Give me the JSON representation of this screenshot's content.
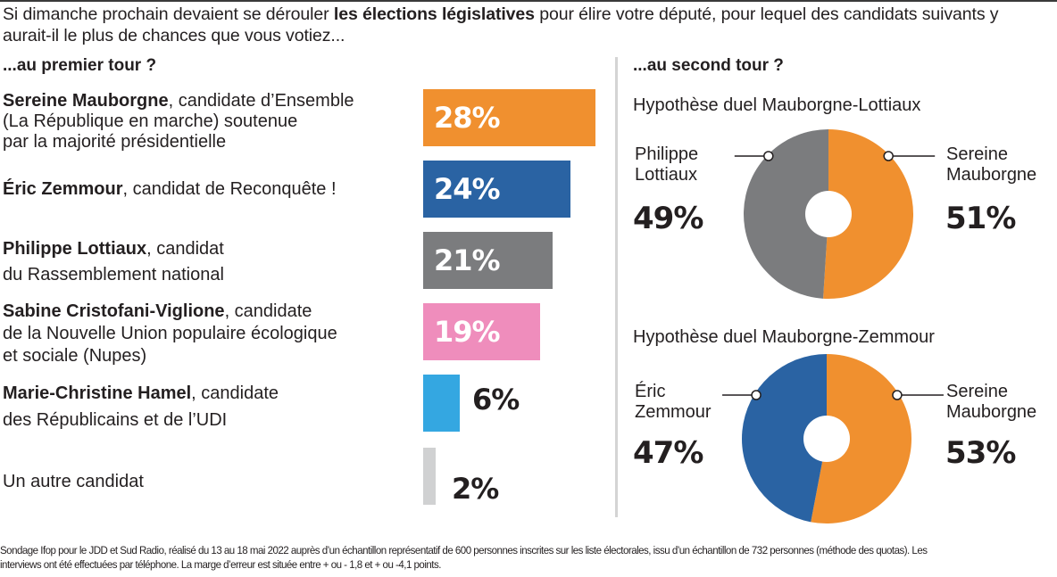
{
  "title": {
    "part1": "Si dimanche prochain devaient se dérouler ",
    "bold": "les élections législatives",
    "part2": " pour élire votre député, pour lequel des candidats suivants y aurait-il le plus de chances que vous votiez..."
  },
  "first_round_heading": "...au premier tour ?",
  "second_round_heading": "...au second tour ?",
  "colors": {
    "orange": "#f0902f",
    "blue": "#2a63a3",
    "gray": "#7b7c7e",
    "pink": "#ef8dbc",
    "lightblue": "#34a7e1",
    "lightgray": "#d0d1d2"
  },
  "chart_data": [
    {
      "type": "bar",
      "title": "...au premier tour ?",
      "orientation": "horizontal",
      "categories": [
        "Sereine Mauborgne",
        "Éric Zemmour",
        "Philippe Lottiaux",
        "Sabine Cristofani-Viglione",
        "Marie-Christine Hamel",
        "Un autre candidat"
      ],
      "values": [
        28,
        24,
        21,
        19,
        6,
        2
      ],
      "unit": "%",
      "xlim": [
        0,
        28
      ],
      "bars": [
        {
          "name": "Sereine Mauborgne",
          "desc": ", candidate d’Ensemble (La République en marche) soutenue par la majorité présidentielle",
          "desc_lines": [
            ", candidate d’Ensemble",
            "(La République en marche) soutenue",
            "par la majorité présidentielle"
          ],
          "value": 28,
          "label": "28%",
          "color": "#f0902f",
          "label_inside": true
        },
        {
          "name": "Éric Zemmour",
          "desc_lines": [
            ", candidat de Reconquête !"
          ],
          "value": 24,
          "label": "24%",
          "color": "#2a63a3",
          "label_inside": true
        },
        {
          "name": "Philippe Lottiaux",
          "desc_lines": [
            ", candidat",
            "du Rassemblement national"
          ],
          "value": 21,
          "label": "21%",
          "color": "#7b7c7e",
          "label_inside": true
        },
        {
          "name": "Sabine Cristofani-Viglione",
          "desc_lines": [
            ", candidate",
            "de la Nouvelle Union populaire écologique",
            "et sociale (Nupes)"
          ],
          "value": 19,
          "label": "19%",
          "color": "#ef8dbc",
          "label_inside": true
        },
        {
          "name": "Marie-Christine Hamel",
          "desc_lines": [
            ", candidate",
            "des Républicains et de l’UDI"
          ],
          "value": 6,
          "label": "6%",
          "color": "#34a7e1",
          "label_inside": false
        },
        {
          "name": "",
          "desc_lines": [
            "Un autre candidat"
          ],
          "value": 2,
          "label": "2%",
          "color": "#d0d1d2",
          "label_inside": false
        }
      ]
    },
    {
      "type": "pie",
      "title": "Hypothèse duel Mauborgne-Lottiaux",
      "slices": [
        {
          "name": "Sereine Mauborgne",
          "name_lines": [
            "Sereine",
            "Mauborgne"
          ],
          "value": 51,
          "label": "51%",
          "color": "#f0902f"
        },
        {
          "name": "Philippe Lottiaux",
          "name_lines": [
            "Philippe",
            "Lottiaux"
          ],
          "value": 49,
          "label": "49%",
          "color": "#7b7c7e"
        }
      ]
    },
    {
      "type": "pie",
      "title": "Hypothèse duel Mauborgne-Zemmour",
      "slices": [
        {
          "name": "Sereine Mauborgne",
          "name_lines": [
            "Sereine",
            "Mauborgne"
          ],
          "value": 53,
          "label": "53%",
          "color": "#f0902f"
        },
        {
          "name": "Éric Zemmour",
          "name_lines": [
            "Éric",
            "Zemmour"
          ],
          "value": 47,
          "label": "47%",
          "color": "#2a63a3"
        }
      ]
    }
  ],
  "footer": {
    "line1": "Sondage Ifop pour le JDD et Sud Radio, réalisé  du 13 au 18 mai 2022 auprès d’un échantillon représentatif de 600 personnes inscrites sur les liste électorales, issu d’un échantillon de 732 personnes (méthode des quotas). Les",
    "line2": "interviews ont été effectuées par téléphone. La marge d’erreur est située entre  + ou - 1,8 et + ou -4,1 points."
  }
}
